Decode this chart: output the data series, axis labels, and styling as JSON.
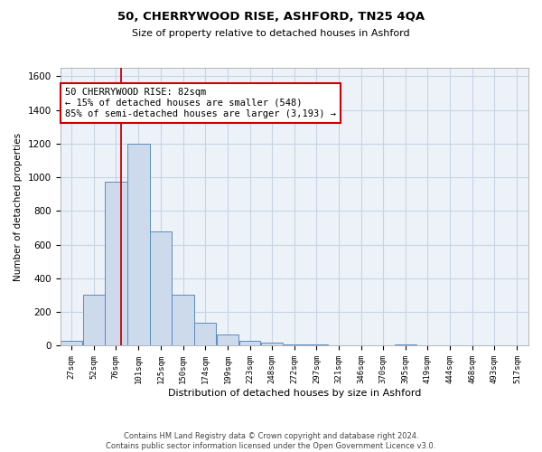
{
  "title_line1": "50, CHERRYWOOD RISE, ASHFORD, TN25 4QA",
  "title_line2": "Size of property relative to detached houses in Ashford",
  "xlabel": "Distribution of detached houses by size in Ashford",
  "ylabel": "Number of detached properties",
  "footnote": "Contains HM Land Registry data © Crown copyright and database right 2024.\nContains public sector information licensed under the Open Government Licence v3.0.",
  "annotation_line1": "50 CHERRYWOOD RISE: 82sqm",
  "annotation_line2": "← 15% of detached houses are smaller (548)",
  "annotation_line3": "85% of semi-detached houses are larger (3,193) →",
  "property_size": 82,
  "bar_color": "#ccdaeb",
  "bar_edge_color": "#5a8dbf",
  "vline_color": "#cc0000",
  "annotation_box_color": "#cc0000",
  "grid_color": "#c8d4e4",
  "bg_color": "#edf2f9",
  "categories": [
    "27sqm",
    "52sqm",
    "76sqm",
    "101sqm",
    "125sqm",
    "150sqm",
    "174sqm",
    "199sqm",
    "223sqm",
    "248sqm",
    "272sqm",
    "297sqm",
    "321sqm",
    "346sqm",
    "370sqm",
    "395sqm",
    "419sqm",
    "444sqm",
    "468sqm",
    "493sqm",
    "517sqm"
  ],
  "values": [
    30,
    305,
    975,
    1200,
    680,
    305,
    135,
    65,
    30,
    20,
    10,
    8,
    5,
    3,
    2,
    8,
    1,
    0,
    0,
    0,
    5
  ],
  "bin_edges": [
    14.5,
    39.5,
    63.5,
    88.5,
    113.5,
    137.5,
    162.5,
    186.5,
    211.5,
    235.5,
    260.5,
    284.5,
    309.5,
    333.5,
    358.5,
    382.5,
    407.5,
    431.5,
    456.5,
    480.5,
    505.5,
    530.5
  ],
  "ylim": [
    0,
    1650
  ],
  "yticks": [
    0,
    200,
    400,
    600,
    800,
    1000,
    1200,
    1400,
    1600
  ]
}
